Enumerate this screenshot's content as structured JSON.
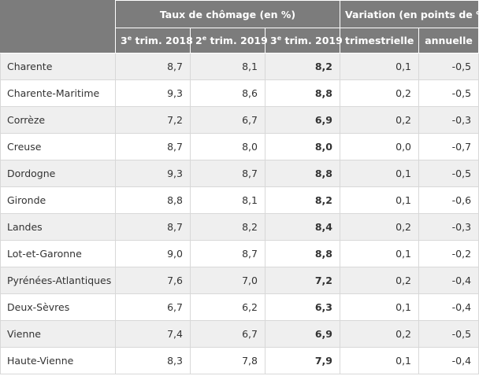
{
  "headers": {
    "group1": "Taux de chômage (en %)",
    "group2": "Variation (en points de %)",
    "q2018": {
      "prefix": "3",
      "sup": "e",
      "suffix": " trim. 2018"
    },
    "q2019b": {
      "prefix": "2",
      "sup": "e",
      "suffix": " trim. 2019"
    },
    "q2019c": {
      "prefix": "3",
      "sup": "e",
      "suffix": " trim. 2019"
    },
    "quarterly": "trimestrielle",
    "annual": "annuelle"
  },
  "rows": [
    {
      "name": "Charente",
      "t2018q3": "8,7",
      "t2019q2": "8,1",
      "t2019q3": "8,2",
      "quarterly": "0,1",
      "annual": "-0,5"
    },
    {
      "name": "Charente-Maritime",
      "t2018q3": "9,3",
      "t2019q2": "8,6",
      "t2019q3": "8,8",
      "quarterly": "0,2",
      "annual": "-0,5"
    },
    {
      "name": "Corrèze",
      "t2018q3": "7,2",
      "t2019q2": "6,7",
      "t2019q3": "6,9",
      "quarterly": "0,2",
      "annual": "-0,3"
    },
    {
      "name": "Creuse",
      "t2018q3": "8,7",
      "t2019q2": "8,0",
      "t2019q3": "8,0",
      "quarterly": "0,0",
      "annual": "-0,7"
    },
    {
      "name": "Dordogne",
      "t2018q3": "9,3",
      "t2019q2": "8,7",
      "t2019q3": "8,8",
      "quarterly": "0,1",
      "annual": "-0,5"
    },
    {
      "name": "Gironde",
      "t2018q3": "8,8",
      "t2019q2": "8,1",
      "t2019q3": "8,2",
      "quarterly": "0,1",
      "annual": "-0,6"
    },
    {
      "name": "Landes",
      "t2018q3": "8,7",
      "t2019q2": "8,2",
      "t2019q3": "8,4",
      "quarterly": "0,2",
      "annual": "-0,3"
    },
    {
      "name": "Lot-et-Garonne",
      "t2018q3": "9,0",
      "t2019q2": "8,7",
      "t2019q3": "8,8",
      "quarterly": "0,1",
      "annual": "-0,2"
    },
    {
      "name": "Pyrénées-Atlantiques",
      "t2018q3": "7,6",
      "t2019q2": "7,0",
      "t2019q3": "7,2",
      "quarterly": "0,2",
      "annual": "-0,4"
    },
    {
      "name": "Deux-Sèvres",
      "t2018q3": "6,7",
      "t2019q2": "6,2",
      "t2019q3": "6,3",
      "quarterly": "0,1",
      "annual": "-0,4"
    },
    {
      "name": "Vienne",
      "t2018q3": "7,4",
      "t2019q2": "6,7",
      "t2019q3": "6,9",
      "quarterly": "0,2",
      "annual": "-0,5"
    },
    {
      "name": "Haute-Vienne",
      "t2018q3": "8,3",
      "t2019q2": "7,8",
      "t2019q3": "7,9",
      "quarterly": "0,1",
      "annual": "-0,4"
    }
  ]
}
